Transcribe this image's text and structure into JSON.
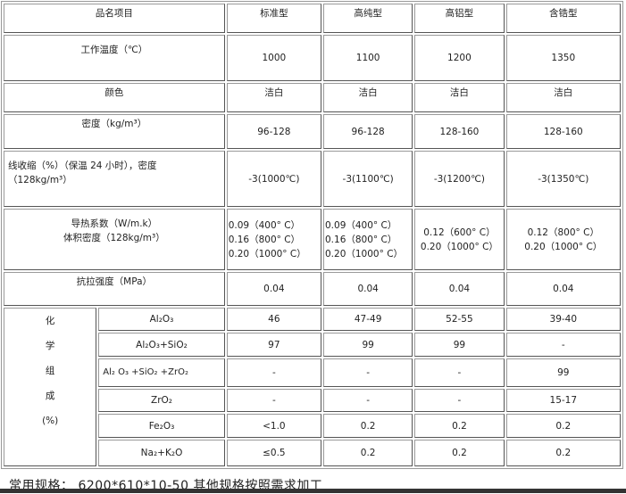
{
  "header": {
    "item": "品名项目",
    "types": [
      "标准型",
      "高纯型",
      "高铝型",
      "含锆型"
    ]
  },
  "rows": [
    {
      "label": "工作温度（℃）",
      "values": [
        "1000",
        "1100",
        "1200",
        "1350"
      ]
    },
    {
      "label": "颜色",
      "values": [
        "洁白",
        "洁白",
        "洁白",
        "洁白"
      ]
    },
    {
      "label": "密度（kg/m³）",
      "values": [
        "96-128",
        "96-128",
        "128-160",
        "128-160"
      ]
    },
    {
      "label": "线收缩（%）（保温 24 小时），密度（128kg/m³）",
      "values": [
        "-3(1000℃)",
        "-3(1100℃)",
        "-3(1200℃)",
        "-3(1350℃)"
      ]
    },
    {
      "label_line1": "导热系数（W/m.k）",
      "label_line2": "体积密度（128kg/m³）",
      "values": [
        "0.09（400° C）\n0.16（800° C）\n0.20（1000° C）",
        "0.09（400° C）\n0.16（800° C）\n0.20（1000° C）",
        "0.12（600° C）\n0.20（1000° C）",
        "0.12（800° C）\n0.20（1000° C）"
      ]
    },
    {
      "label": "抗拉强度（MPa）",
      "values": [
        "0.04",
        "0.04",
        "0.04",
        "0.04"
      ]
    }
  ],
  "chem": {
    "label_chars": [
      "化",
      "学",
      "组",
      "成",
      "(%)"
    ],
    "rows": [
      {
        "label": "Al₂O₃",
        "values": [
          "46",
          "47-49",
          "52-55",
          "39-40"
        ]
      },
      {
        "label": "Al₂O₃+SiO₂",
        "values": [
          "97",
          "99",
          "99",
          "-"
        ]
      },
      {
        "label": "Al₂ O₃ +SiO₂ +ZrO₂",
        "values": [
          "-",
          "-",
          "-",
          "99"
        ]
      },
      {
        "label": "ZrO₂",
        "values": [
          "-",
          "-",
          "-",
          "15-17"
        ]
      },
      {
        "label": "Fe₂O₃",
        "values": [
          "<1.0",
          "0.2",
          "0.2",
          "0.2"
        ]
      },
      {
        "label": "Na₂+K₂O",
        "values": [
          "≤0.5",
          "0.2",
          "0.2",
          "0.2"
        ]
      }
    ]
  },
  "footer": "常用规格： 6200*610*10-50 其他规格按照需求加工"
}
